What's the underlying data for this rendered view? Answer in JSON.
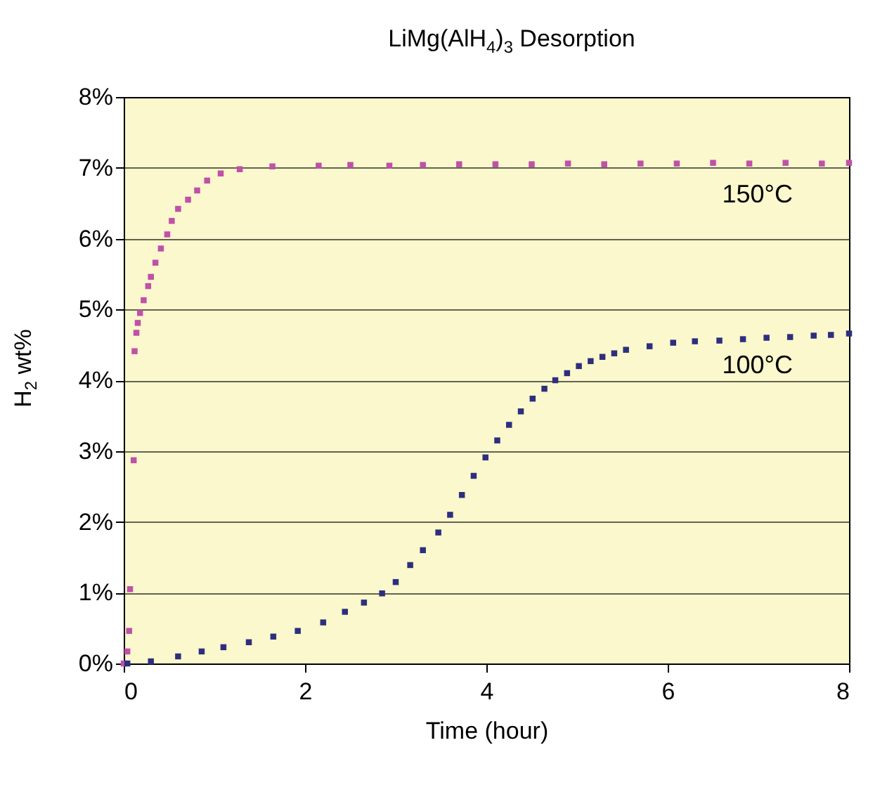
{
  "chart_data": {
    "type": "scatter",
    "title": "LiMg(AlH$_{4}$)$_{3}$ Desorption",
    "xlabel": "Time (hour)",
    "ylabel": "H$_{2}$ wt%",
    "xlim": [
      0,
      8
    ],
    "xticks": [
      0,
      2,
      4,
      6,
      8
    ],
    "ylim": [
      0,
      8
    ],
    "yticks": [
      {
        "value": 0,
        "label": "0%"
      },
      {
        "value": 1,
        "label": "1%"
      },
      {
        "value": 2,
        "label": "2%"
      },
      {
        "value": 3,
        "label": "3%"
      },
      {
        "value": 4,
        "label": "4%"
      },
      {
        "value": 5,
        "label": "5%"
      },
      {
        "value": 6,
        "label": "6%"
      },
      {
        "value": 7,
        "label": "7%"
      },
      {
        "value": 8,
        "label": "8%"
      }
    ],
    "grid": "y",
    "marker": "square",
    "series": [
      {
        "name": "150°C",
        "color": "#c050a8",
        "x": [
          0,
          0.04,
          0.06,
          0.07,
          0.11,
          0.12,
          0.14,
          0.155,
          0.18,
          0.22,
          0.27,
          0.3,
          0.35,
          0.41,
          0.48,
          0.53,
          0.6,
          0.71,
          0.81,
          0.92,
          1.07,
          1.28,
          1.64,
          2.15,
          2.5,
          2.93,
          3.3,
          3.7,
          4.1,
          4.5,
          4.9,
          5.3,
          5.7,
          6.1,
          6.5,
          6.9,
          7.3,
          7.7,
          8
        ],
        "values": [
          0,
          0.17,
          0.46,
          1.05,
          2.87,
          4.41,
          4.67,
          4.81,
          4.95,
          5.13,
          5.33,
          5.46,
          5.66,
          5.86,
          6.06,
          6.25,
          6.42,
          6.55,
          6.68,
          6.82,
          6.92,
          6.98,
          7.02,
          7.03,
          7.04,
          7.03,
          7.04,
          7.05,
          7.05,
          7.05,
          7.06,
          7.05,
          7.06,
          7.06,
          7.07,
          7.06,
          7.07,
          7.06,
          7.07
        ]
      },
      {
        "name": "100°C",
        "color": "#2e2e7e",
        "x": [
          0.04,
          0.3,
          0.6,
          0.86,
          1.1,
          1.38,
          1.65,
          1.92,
          2.2,
          2.44,
          2.65,
          2.85,
          3.0,
          3.16,
          3.3,
          3.47,
          3.6,
          3.73,
          3.86,
          3.99,
          4.12,
          4.25,
          4.38,
          4.51,
          4.64,
          4.76,
          4.89,
          5.02,
          5.15,
          5.28,
          5.41,
          5.54,
          5.8,
          6.06,
          6.3,
          6.57,
          6.83,
          7.09,
          7.35,
          7.61,
          7.8,
          8
        ],
        "values": [
          0,
          0.03,
          0.1,
          0.17,
          0.23,
          0.3,
          0.38,
          0.46,
          0.58,
          0.73,
          0.86,
          0.99,
          1.15,
          1.39,
          1.6,
          1.85,
          2.1,
          2.38,
          2.65,
          2.91,
          3.15,
          3.37,
          3.56,
          3.74,
          3.88,
          4.0,
          4.1,
          4.2,
          4.27,
          4.33,
          4.38,
          4.43,
          4.48,
          4.53,
          4.55,
          4.56,
          4.58,
          4.6,
          4.61,
          4.63,
          4.64,
          4.66
        ]
      }
    ]
  }
}
